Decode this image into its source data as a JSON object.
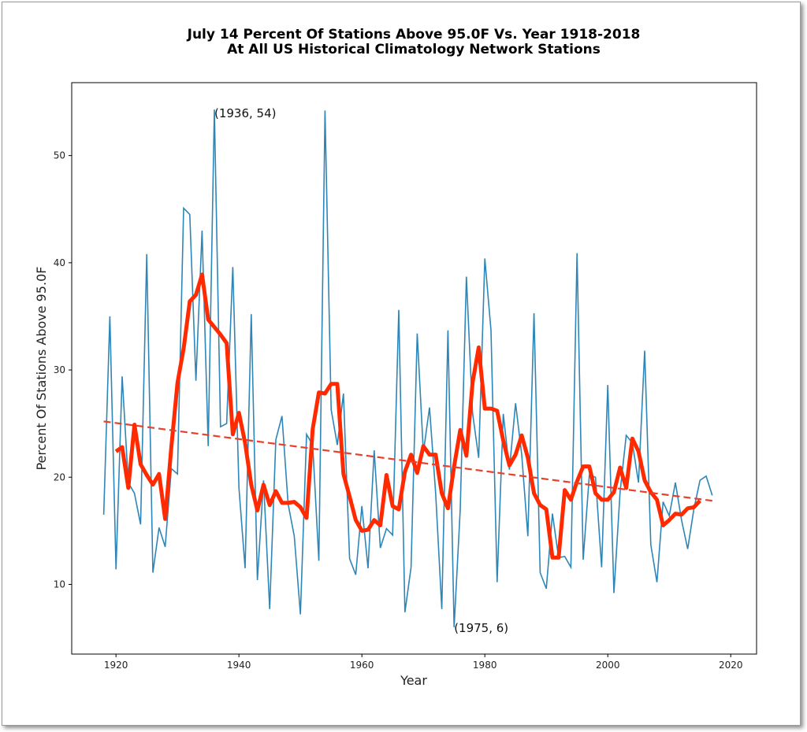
{
  "chart_data": {
    "type": "line",
    "title": "July 14 Percent Of Stations Above 95.0F Vs. Year 1918-2018",
    "subtitle": "At All US Historical Climatology Network Stations",
    "xlabel": "Year",
    "ylabel": "Percent Of Stations Above 95.0F",
    "xlim": [
      1912.8,
      2024.2
    ],
    "ylim": [
      3.5,
      56.8
    ],
    "xticks": [
      1920,
      1940,
      1960,
      1980,
      2000,
      2020
    ],
    "yticks": [
      10,
      20,
      30,
      40,
      50
    ],
    "grid": false,
    "colors": {
      "raw": "#2e86b8",
      "smoothed": "#ff2a00",
      "trend": "#e8402a"
    },
    "series": [
      {
        "style": "raw",
        "x_start": 1918,
        "values": [
          16.5,
          35,
          11.4,
          29.4,
          19.5,
          18.5,
          15.6,
          40.8,
          11.1,
          15.3,
          13.5,
          20.8,
          20.3,
          45.1,
          44.5,
          29,
          43,
          22.9,
          54.3,
          24.7,
          25,
          39.6,
          19,
          11.5,
          35.2,
          10.4,
          19.7,
          7.7,
          23.5,
          25.7,
          17.5,
          14.5,
          7.2,
          24,
          23,
          12.2,
          54.2,
          26.3,
          23,
          27.8,
          12.4,
          10.9,
          17.3,
          11.5,
          22.5,
          13.4,
          15.2,
          14.6,
          35.6,
          7.4,
          11.6,
          33.4,
          22.3,
          26.5,
          18.5,
          7.7,
          33.7,
          6,
          17,
          38.7,
          26,
          21.8,
          40.4,
          33.7,
          10.2,
          25.9,
          20.7,
          26.9,
          22.1,
          14.5,
          35.3,
          11.1,
          9.6,
          16.6,
          12.5,
          12.6,
          11.6,
          40.9,
          12.3,
          20.2,
          20,
          11.6,
          28.6,
          9.2,
          18.6,
          23.9,
          23.2,
          19.5,
          31.8,
          13.7,
          10.2,
          17.7,
          16.4,
          19.5,
          16,
          13.3,
          17,
          19.7,
          20.1,
          18.3
        ]
      },
      {
        "style": "smoothed",
        "x_start": 1920,
        "values": [
          22.4,
          22.8,
          19,
          24.9,
          21.2,
          20.2,
          19.3,
          20.3,
          16.1,
          22.8,
          28.8,
          32,
          36.4,
          37,
          38.9,
          34.7,
          34,
          33.3,
          32.5,
          24,
          26,
          23.2,
          19.3,
          16.9,
          19.3,
          17.4,
          18.7,
          17.6,
          17.6,
          17.7,
          17.2,
          16.2,
          24.5,
          27.9,
          27.8,
          28.7,
          28.7,
          20.3,
          18.2,
          16,
          15,
          15.1,
          16,
          15.5,
          20.2,
          17.3,
          17,
          20.5,
          22.1,
          20.4,
          22.9,
          22.1,
          22.1,
          18.5,
          17.1,
          21,
          24.4,
          22,
          28.8,
          32.1,
          26.4,
          26.4,
          26.2,
          23.4,
          21.1,
          22.1,
          23.9,
          21.8,
          18.5,
          17.4,
          17,
          12.5,
          12.5,
          18.8,
          17.9,
          19.6,
          21,
          21,
          18.5,
          17.9,
          17.9,
          18.6,
          20.9,
          19,
          23.6,
          22.4,
          19.7,
          18.6,
          17.9,
          15.5,
          16,
          16.6,
          16.5,
          17.1,
          17.2,
          17.8
        ]
      },
      {
        "style": "trend",
        "x": [
          1918,
          2017
        ],
        "values": [
          25.2,
          17.8
        ]
      }
    ],
    "annotations": [
      {
        "text": "(1936, 54)",
        "x": 1936,
        "y": 54
      },
      {
        "text": "(1975, 6)",
        "x": 1975,
        "y": 6
      }
    ]
  }
}
